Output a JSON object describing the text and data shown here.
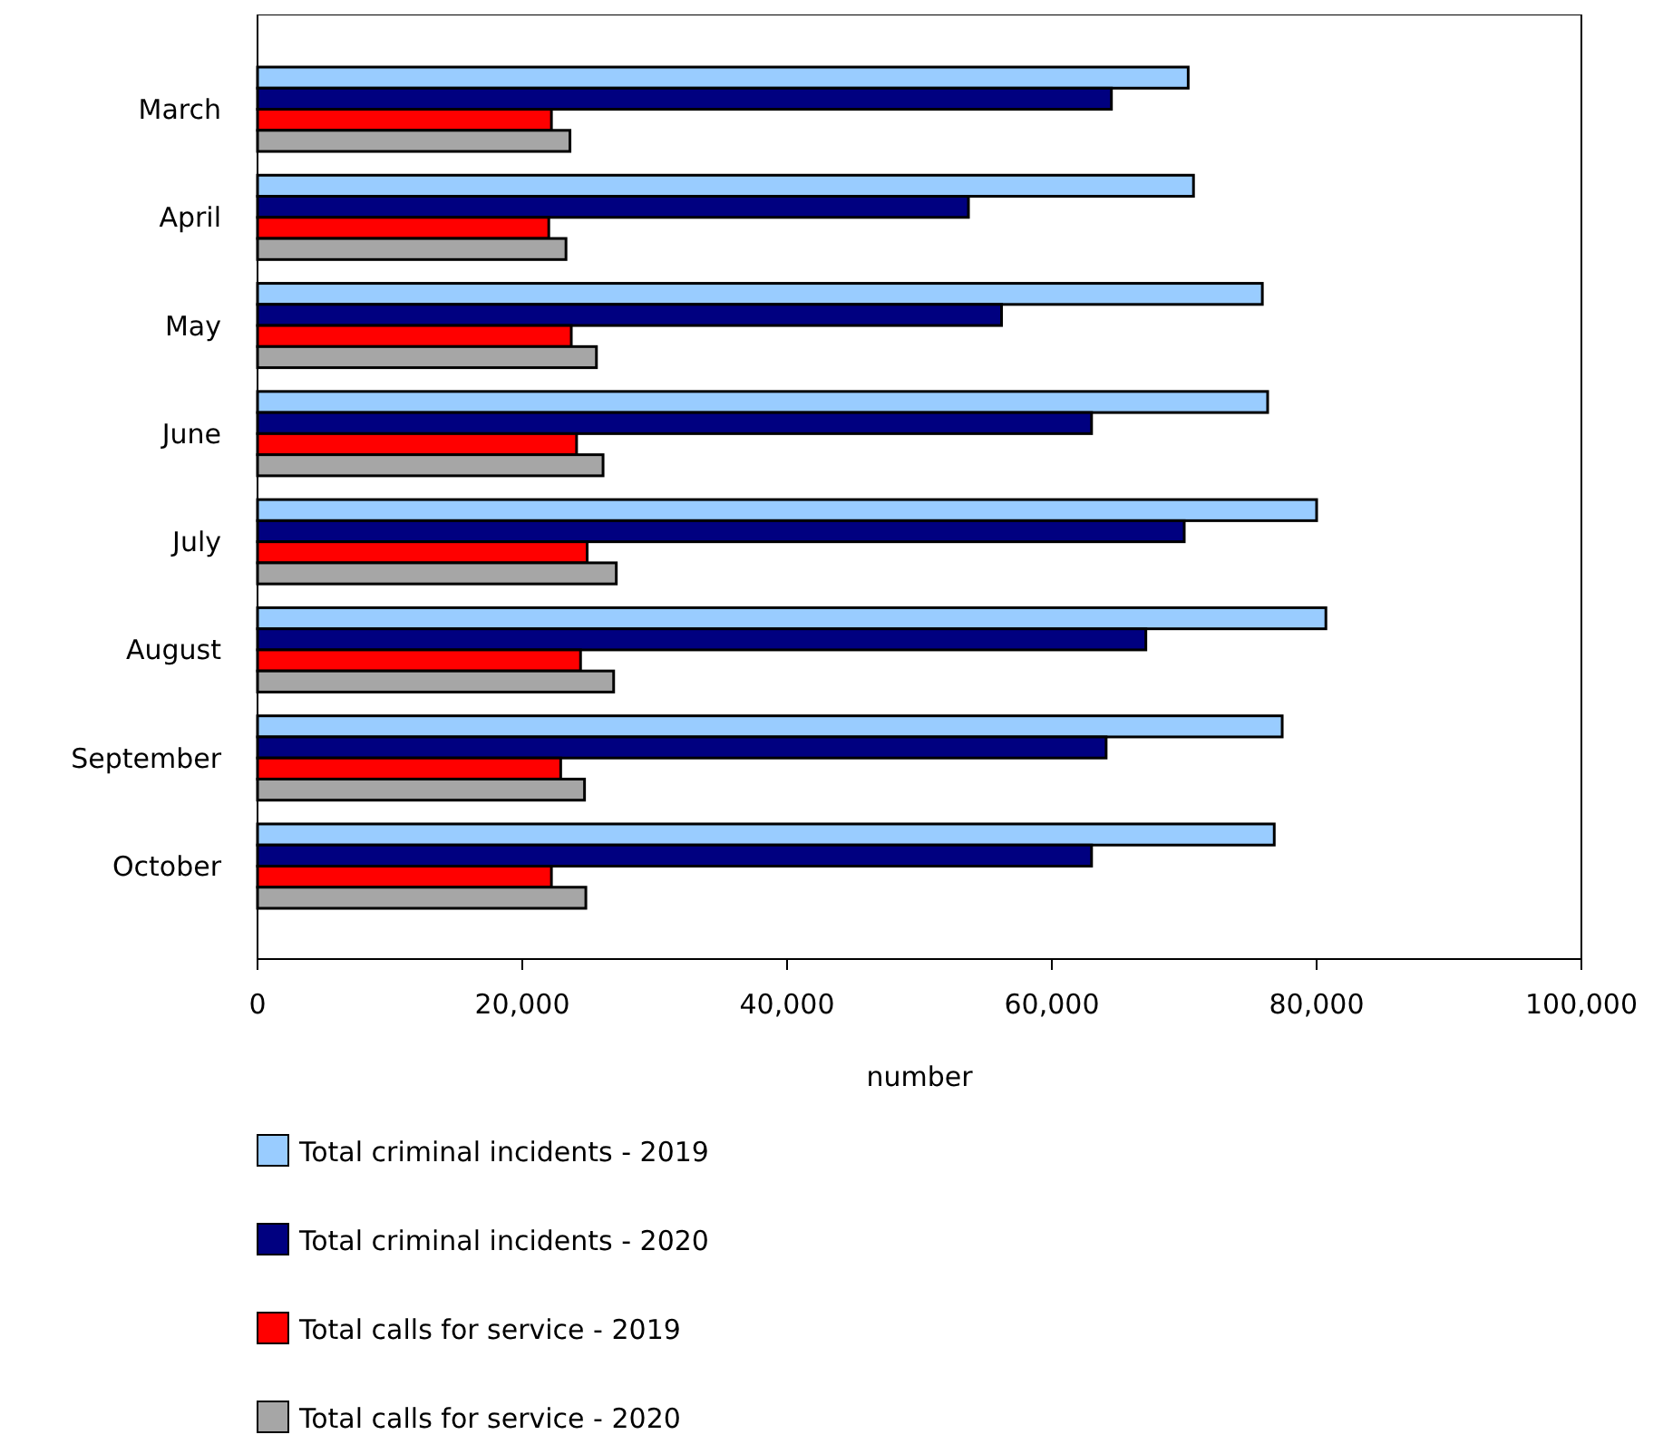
{
  "chart_data": {
    "type": "bar",
    "orientation": "horizontal",
    "xlabel": "number",
    "categories": [
      "March",
      "April",
      "May",
      "June",
      "July",
      "August",
      "September",
      "October"
    ],
    "series": [
      {
        "name": "Total criminal incidents - 2019",
        "color": "#99ccff",
        "values": [
          70300,
          70700,
          75900,
          76300,
          80000,
          80700,
          77400,
          76800
        ]
      },
      {
        "name": "Total criminal incidents - 2020",
        "color": "#000080",
        "values": [
          64500,
          53700,
          56200,
          63000,
          70000,
          67100,
          64100,
          63000
        ]
      },
      {
        "name": "Total calls for service - 2019",
        "color": "#ff0000",
        "values": [
          22200,
          22000,
          23700,
          24100,
          24900,
          24400,
          22900,
          22200
        ]
      },
      {
        "name": "Total calls for service - 2020",
        "color": "#a6a6a6",
        "values": [
          23600,
          23300,
          25600,
          26100,
          27100,
          26900,
          24700,
          24800
        ]
      }
    ],
    "xlim": [
      0,
      100000
    ],
    "xticks": [
      {
        "value": 0,
        "label": "0"
      },
      {
        "value": 20000,
        "label": "20,000"
      },
      {
        "value": 40000,
        "label": "40,000"
      },
      {
        "value": 60000,
        "label": "60,000"
      },
      {
        "value": 80000,
        "label": "80,000"
      },
      {
        "value": 100000,
        "label": "100,000"
      }
    ],
    "grid": false,
    "legend": "bottom"
  }
}
